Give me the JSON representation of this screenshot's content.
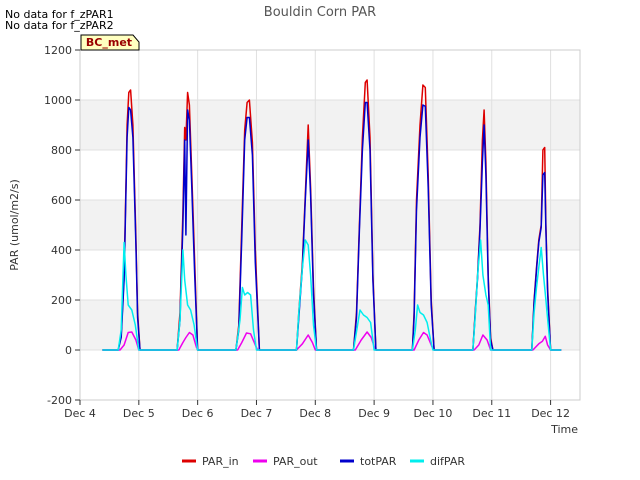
{
  "notices": [
    "No data for f_zPAR1",
    "No data for f_zPAR2"
  ],
  "site_badge": "BC_met",
  "chart_data": {
    "type": "line",
    "title": "Bouldin Corn PAR",
    "xlabel": "Time",
    "ylabel": "PAR (umol/m2/s)",
    "ylim": [
      -200,
      1200
    ],
    "yticks": [
      -200,
      0,
      200,
      400,
      600,
      800,
      1000,
      1200
    ],
    "xlim": [
      4.0,
      12.5
    ],
    "xticks": [
      4,
      5,
      6,
      7,
      8,
      9,
      10,
      11,
      12
    ],
    "xtick_labels": [
      "Dec 4",
      "Dec 5",
      "Dec 6",
      "Dec 7",
      "Dec 8",
      "Dec 9",
      "Dec 10",
      "Dec 11",
      "Dec 12"
    ],
    "x_unit": "day of December",
    "grid": true,
    "banded_background": true,
    "legend_position": "bottom-center",
    "series": [
      {
        "name": "PAR_in",
        "color": "#dd0000",
        "points": [
          [
            4.38,
            0
          ],
          [
            4.65,
            0
          ],
          [
            4.7,
            60
          ],
          [
            4.75,
            300
          ],
          [
            4.78,
            650
          ],
          [
            4.8,
            900
          ],
          [
            4.83,
            1030
          ],
          [
            4.86,
            1040
          ],
          [
            4.9,
            900
          ],
          [
            4.95,
            450
          ],
          [
            4.98,
            150
          ],
          [
            5.02,
            0
          ],
          [
            5.65,
            0
          ],
          [
            5.7,
            150
          ],
          [
            5.75,
            550
          ],
          [
            5.78,
            890
          ],
          [
            5.8,
            840
          ],
          [
            5.83,
            1030
          ],
          [
            5.86,
            980
          ],
          [
            5.9,
            700
          ],
          [
            5.95,
            350
          ],
          [
            6.0,
            0
          ],
          [
            6.65,
            0
          ],
          [
            6.7,
            100
          ],
          [
            6.75,
            500
          ],
          [
            6.8,
            880
          ],
          [
            6.84,
            990
          ],
          [
            6.88,
            1000
          ],
          [
            6.93,
            830
          ],
          [
            6.98,
            400
          ],
          [
            7.05,
            0
          ],
          [
            7.68,
            0
          ],
          [
            7.72,
            150
          ],
          [
            7.78,
            350
          ],
          [
            7.83,
            620
          ],
          [
            7.88,
            900
          ],
          [
            7.92,
            650
          ],
          [
            7.97,
            250
          ],
          [
            8.02,
            0
          ],
          [
            8.65,
            0
          ],
          [
            8.7,
            150
          ],
          [
            8.75,
            500
          ],
          [
            8.8,
            850
          ],
          [
            8.85,
            1070
          ],
          [
            8.88,
            1080
          ],
          [
            8.93,
            850
          ],
          [
            8.98,
            300
          ],
          [
            9.03,
            0
          ],
          [
            9.65,
            0
          ],
          [
            9.68,
            150
          ],
          [
            9.72,
            600
          ],
          [
            9.78,
            900
          ],
          [
            9.83,
            1060
          ],
          [
            9.87,
            1050
          ],
          [
            9.92,
            700
          ],
          [
            9.97,
            200
          ],
          [
            10.02,
            0
          ],
          [
            10.68,
            0
          ],
          [
            10.72,
            160
          ],
          [
            10.76,
            300
          ],
          [
            10.8,
            500
          ],
          [
            10.84,
            840
          ],
          [
            10.87,
            960
          ],
          [
            10.9,
            750
          ],
          [
            10.94,
            300
          ],
          [
            10.98,
            50
          ],
          [
            11.02,
            0
          ],
          [
            11.68,
            0
          ],
          [
            11.72,
            200
          ],
          [
            11.76,
            330
          ],
          [
            11.8,
            440
          ],
          [
            11.84,
            500
          ],
          [
            11.87,
            800
          ],
          [
            11.9,
            810
          ],
          [
            11.92,
            500
          ],
          [
            11.95,
            250
          ],
          [
            12.0,
            0
          ],
          [
            12.18,
            0
          ]
        ]
      },
      {
        "name": "PAR_out",
        "color": "#ee00ee",
        "points": [
          [
            4.38,
            0
          ],
          [
            4.68,
            0
          ],
          [
            4.75,
            20
          ],
          [
            4.82,
            70
          ],
          [
            4.88,
            72
          ],
          [
            4.95,
            40
          ],
          [
            5.0,
            0
          ],
          [
            5.68,
            0
          ],
          [
            5.75,
            30
          ],
          [
            5.8,
            50
          ],
          [
            5.86,
            70
          ],
          [
            5.92,
            60
          ],
          [
            5.98,
            10
          ],
          [
            6.02,
            0
          ],
          [
            6.68,
            0
          ],
          [
            6.75,
            30
          ],
          [
            6.83,
            68
          ],
          [
            6.9,
            65
          ],
          [
            6.98,
            20
          ],
          [
            7.02,
            0
          ],
          [
            7.68,
            0
          ],
          [
            7.78,
            25
          ],
          [
            7.88,
            60
          ],
          [
            7.95,
            30
          ],
          [
            8.0,
            0
          ],
          [
            8.68,
            0
          ],
          [
            8.78,
            40
          ],
          [
            8.88,
            72
          ],
          [
            8.95,
            50
          ],
          [
            9.02,
            0
          ],
          [
            9.68,
            0
          ],
          [
            9.76,
            40
          ],
          [
            9.84,
            70
          ],
          [
            9.9,
            60
          ],
          [
            9.98,
            15
          ],
          [
            10.02,
            0
          ],
          [
            10.7,
            0
          ],
          [
            10.78,
            20
          ],
          [
            10.85,
            60
          ],
          [
            10.92,
            40
          ],
          [
            10.98,
            0
          ],
          [
            11.7,
            0
          ],
          [
            11.8,
            25
          ],
          [
            11.86,
            35
          ],
          [
            11.91,
            55
          ],
          [
            11.95,
            20
          ],
          [
            12.0,
            0
          ],
          [
            12.18,
            0
          ]
        ]
      },
      {
        "name": "totPAR",
        "color": "#0000cc",
        "points": [
          [
            4.38,
            0
          ],
          [
            4.65,
            0
          ],
          [
            4.7,
            50
          ],
          [
            4.75,
            280
          ],
          [
            4.78,
            620
          ],
          [
            4.8,
            850
          ],
          [
            4.83,
            970
          ],
          [
            4.86,
            960
          ],
          [
            4.9,
            850
          ],
          [
            4.95,
            420
          ],
          [
            4.98,
            130
          ],
          [
            5.02,
            0
          ],
          [
            5.65,
            0
          ],
          [
            5.7,
            120
          ],
          [
            5.75,
            500
          ],
          [
            5.78,
            840
          ],
          [
            5.8,
            460
          ],
          [
            5.83,
            960
          ],
          [
            5.86,
            920
          ],
          [
            5.9,
            650
          ],
          [
            5.95,
            300
          ],
          [
            6.0,
            0
          ],
          [
            6.65,
            0
          ],
          [
            6.7,
            80
          ],
          [
            6.75,
            450
          ],
          [
            6.8,
            840
          ],
          [
            6.84,
            930
          ],
          [
            6.88,
            930
          ],
          [
            6.93,
            780
          ],
          [
            6.98,
            350
          ],
          [
            7.05,
            0
          ],
          [
            7.68,
            0
          ],
          [
            7.72,
            130
          ],
          [
            7.78,
            330
          ],
          [
            7.83,
            600
          ],
          [
            7.88,
            840
          ],
          [
            7.92,
            620
          ],
          [
            7.97,
            220
          ],
          [
            8.02,
            0
          ],
          [
            8.65,
            0
          ],
          [
            8.7,
            130
          ],
          [
            8.75,
            480
          ],
          [
            8.8,
            800
          ],
          [
            8.85,
            990
          ],
          [
            8.88,
            990
          ],
          [
            8.93,
            800
          ],
          [
            8.98,
            280
          ],
          [
            9.03,
            0
          ],
          [
            9.65,
            0
          ],
          [
            9.68,
            130
          ],
          [
            9.72,
            560
          ],
          [
            9.78,
            850
          ],
          [
            9.83,
            980
          ],
          [
            9.87,
            975
          ],
          [
            9.92,
            650
          ],
          [
            9.97,
            180
          ],
          [
            10.02,
            0
          ],
          [
            10.68,
            0
          ],
          [
            10.72,
            150
          ],
          [
            10.76,
            290
          ],
          [
            10.8,
            480
          ],
          [
            10.84,
            750
          ],
          [
            10.87,
            900
          ],
          [
            10.9,
            700
          ],
          [
            10.94,
            280
          ],
          [
            10.98,
            40
          ],
          [
            11.02,
            0
          ],
          [
            11.68,
            0
          ],
          [
            11.72,
            190
          ],
          [
            11.76,
            320
          ],
          [
            11.8,
            430
          ],
          [
            11.84,
            490
          ],
          [
            11.87,
            700
          ],
          [
            11.9,
            710
          ],
          [
            11.92,
            480
          ],
          [
            11.95,
            230
          ],
          [
            12.0,
            0
          ],
          [
            12.18,
            0
          ]
        ]
      },
      {
        "name": "difPAR",
        "color": "#00eeee",
        "points": [
          [
            4.38,
            0
          ],
          [
            4.65,
            0
          ],
          [
            4.7,
            80
          ],
          [
            4.75,
            430
          ],
          [
            4.78,
            300
          ],
          [
            4.82,
            180
          ],
          [
            4.88,
            160
          ],
          [
            4.94,
            100
          ],
          [
            5.0,
            0
          ],
          [
            5.65,
            0
          ],
          [
            5.7,
            120
          ],
          [
            5.75,
            400
          ],
          [
            5.78,
            280
          ],
          [
            5.83,
            180
          ],
          [
            5.88,
            160
          ],
          [
            5.94,
            100
          ],
          [
            6.0,
            0
          ],
          [
            6.65,
            0
          ],
          [
            6.72,
            120
          ],
          [
            6.76,
            250
          ],
          [
            6.8,
            220
          ],
          [
            6.85,
            230
          ],
          [
            6.9,
            220
          ],
          [
            6.95,
            80
          ],
          [
            7.0,
            0
          ],
          [
            7.68,
            0
          ],
          [
            7.72,
            150
          ],
          [
            7.78,
            330
          ],
          [
            7.83,
            440
          ],
          [
            7.88,
            420
          ],
          [
            7.92,
            300
          ],
          [
            7.97,
            100
          ],
          [
            8.02,
            0
          ],
          [
            8.65,
            0
          ],
          [
            8.72,
            100
          ],
          [
            8.76,
            160
          ],
          [
            8.82,
            140
          ],
          [
            8.88,
            130
          ],
          [
            8.94,
            110
          ],
          [
            9.0,
            0
          ],
          [
            9.65,
            0
          ],
          [
            9.7,
            80
          ],
          [
            9.74,
            180
          ],
          [
            9.78,
            150
          ],
          [
            9.84,
            140
          ],
          [
            9.9,
            110
          ],
          [
            9.96,
            40
          ],
          [
            10.0,
            0
          ],
          [
            10.68,
            0
          ],
          [
            10.72,
            140
          ],
          [
            10.76,
            300
          ],
          [
            10.81,
            440
          ],
          [
            10.85,
            300
          ],
          [
            10.9,
            220
          ],
          [
            10.94,
            180
          ],
          [
            10.98,
            0
          ],
          [
            11.68,
            0
          ],
          [
            11.72,
            150
          ],
          [
            11.76,
            250
          ],
          [
            11.8,
            330
          ],
          [
            11.84,
            410
          ],
          [
            11.88,
            300
          ],
          [
            11.92,
            200
          ],
          [
            11.96,
            100
          ],
          [
            12.0,
            0
          ],
          [
            12.18,
            0
          ]
        ]
      }
    ]
  }
}
